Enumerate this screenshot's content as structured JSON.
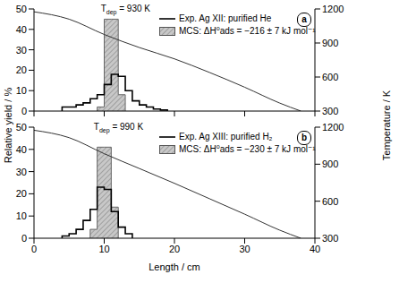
{
  "chart_data": [
    {
      "type": "histogram",
      "panel_label": "a",
      "annotation": {
        "symbol": "T",
        "subscript": "dep",
        "text": "= 930 K"
      },
      "y_label": "Relative yield / %",
      "y2_label": "Temperature / K",
      "xlim": [
        0,
        40
      ],
      "xticks": [
        0,
        10,
        20,
        30,
        40
      ],
      "ylim": [
        0,
        50
      ],
      "yticks": [
        0,
        10,
        20,
        30,
        40,
        50
      ],
      "y2lim": [
        300,
        1200
      ],
      "y2ticks": [
        300,
        600,
        900,
        1200
      ],
      "tick_labels": "y",
      "series": [
        {
          "name": "Exp. Ag XII: purified He",
          "type": "step",
          "color": "#000000",
          "bins": [
            4,
            5,
            6,
            7,
            8,
            9,
            10,
            11,
            12,
            13,
            14,
            15,
            16,
            17,
            18,
            19
          ],
          "values": [
            2,
            2,
            3,
            4,
            6,
            8,
            13,
            18,
            17,
            10,
            5,
            3,
            2,
            1,
            0.5
          ]
        },
        {
          "name": "MCS: ΔH⁰ads = −216 ± 7 kJ mol⁻¹",
          "type": "bar",
          "color": "#c8c8c8",
          "bins": [
            9,
            10,
            11,
            12,
            13
          ],
          "values": [
            2,
            45,
            45,
            8
          ]
        },
        {
          "type": "line",
          "axis": "y2",
          "color": "#333333",
          "x": [
            0,
            5,
            10,
            15,
            20,
            25,
            30,
            35,
            38
          ],
          "values": [
            1175,
            1110,
            975,
            860,
            760,
            640,
            510,
            370,
            300
          ]
        }
      ]
    },
    {
      "type": "histogram",
      "panel_label": "b",
      "annotation": {
        "symbol": "T",
        "subscript": "dep",
        "text": "= 990 K"
      },
      "x_label": "Length / cm",
      "xlim": [
        0,
        40
      ],
      "xticks": [
        0,
        10,
        20,
        30,
        40
      ],
      "ylim": [
        0,
        50
      ],
      "yticks": [
        0,
        10,
        20,
        30,
        40,
        50
      ],
      "y2lim": [
        300,
        1200
      ],
      "y2ticks": [
        300,
        600,
        900,
        1200
      ],
      "series": [
        {
          "name": "Exp. Ag XIII: purified H₂",
          "type": "step",
          "color": "#000000",
          "bins": [
            4,
            5,
            6,
            7,
            8,
            9,
            10,
            11,
            12,
            13,
            14
          ],
          "values": [
            1,
            2,
            4,
            8,
            13,
            23,
            22,
            12,
            5,
            2
          ]
        },
        {
          "name": "MCS: ΔH⁰ads = −230 ± 7 kJ mol⁻¹",
          "type": "bar",
          "color": "#c8c8c8",
          "bins": [
            8,
            9,
            10,
            11,
            12
          ],
          "values": [
            4,
            41,
            41,
            14
          ]
        },
        {
          "type": "line",
          "axis": "y2",
          "color": "#333333",
          "x": [
            0,
            5,
            10,
            15,
            20,
            25,
            30,
            35,
            38
          ],
          "values": [
            1175,
            1115,
            985,
            865,
            745,
            620,
            495,
            365,
            300
          ]
        }
      ]
    }
  ]
}
